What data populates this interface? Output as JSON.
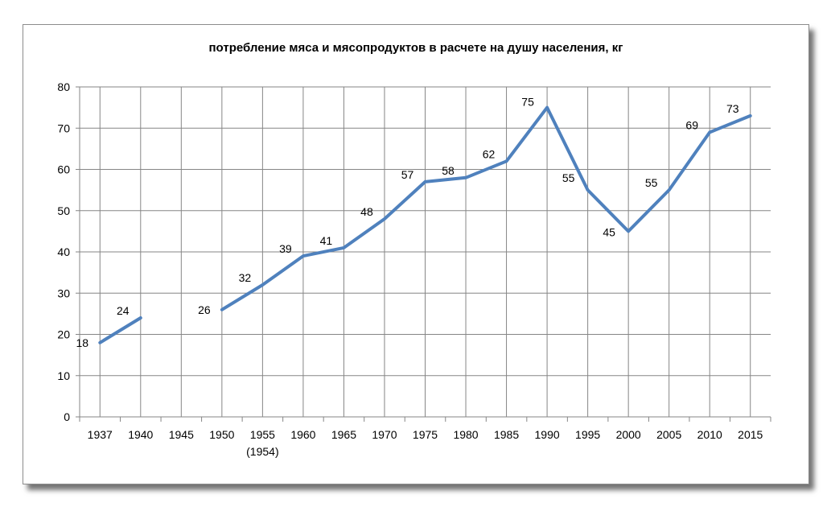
{
  "chart_data": {
    "type": "line",
    "title": "потребление мяса и мясопродуктов в расчете на душу населения, кг",
    "xlabel": "",
    "ylabel": "",
    "ylim": [
      0,
      80
    ],
    "yticks": [
      0,
      10,
      20,
      30,
      40,
      50,
      60,
      70,
      80
    ],
    "grid": true,
    "legend": "none",
    "categories": [
      {
        "label": "1937",
        "sub": ""
      },
      {
        "label": "1940",
        "sub": ""
      },
      {
        "label": "1945",
        "sub": ""
      },
      {
        "label": "1950",
        "sub": ""
      },
      {
        "label": "1955",
        "sub": "(1954)"
      },
      {
        "label": "1960",
        "sub": ""
      },
      {
        "label": "1965",
        "sub": ""
      },
      {
        "label": "1970",
        "sub": ""
      },
      {
        "label": "1975",
        "sub": ""
      },
      {
        "label": "1980",
        "sub": ""
      },
      {
        "label": "1985",
        "sub": ""
      },
      {
        "label": "1990",
        "sub": ""
      },
      {
        "label": "1995",
        "sub": ""
      },
      {
        "label": "2000",
        "sub": ""
      },
      {
        "label": "2005",
        "sub": ""
      },
      {
        "label": "2010",
        "sub": ""
      },
      {
        "label": "2015",
        "sub": ""
      }
    ],
    "series": [
      {
        "values": [
          18,
          24,
          null,
          26,
          32,
          39,
          41,
          48,
          57,
          58,
          62,
          75,
          55,
          45,
          55,
          69,
          73
        ],
        "color": "#4f81bd"
      }
    ]
  }
}
